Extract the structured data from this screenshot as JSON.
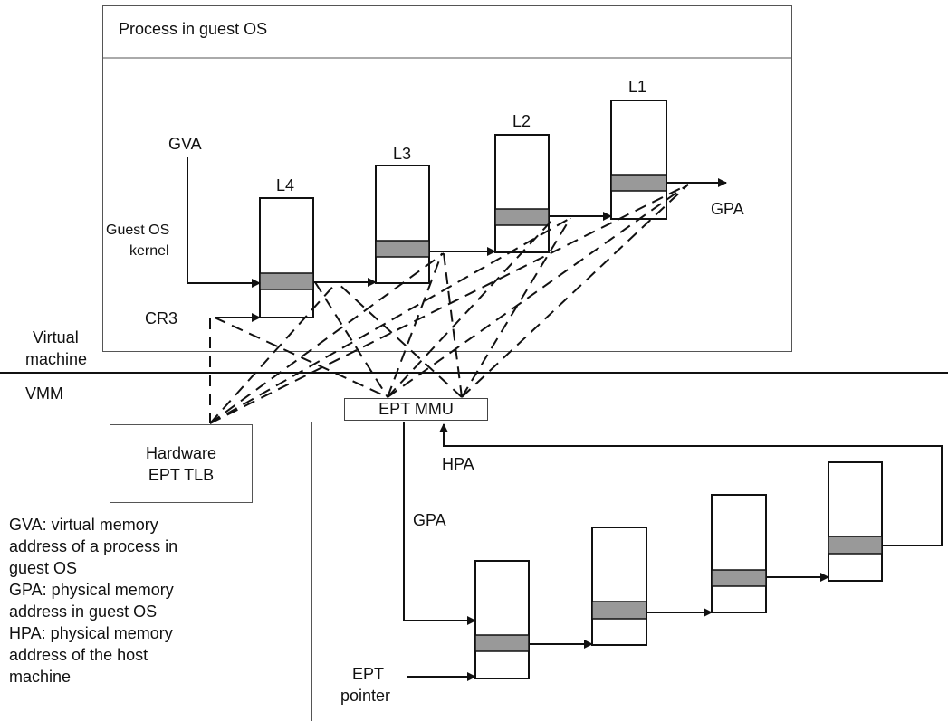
{
  "guest_panel": {
    "title": "Process in guest OS"
  },
  "labels": {
    "gva": "GVA",
    "guest_kernel_line1": "Guest OS",
    "guest_kernel_line2": "kernel",
    "cr3": "CR3",
    "l4": "L4",
    "l3": "L3",
    "l2": "L2",
    "l1": "L1",
    "gpa_out": "GPA",
    "virtual_machine_line1": "Virtual",
    "virtual_machine_line2": "machine",
    "vmm": "VMM",
    "ept_mmu": "EPT MMU",
    "hardware_tlb_line1": "Hardware",
    "hardware_tlb_line2": "EPT TLB",
    "hpa": "HPA",
    "gpa_in": "GPA",
    "ept_pointer_line1": "EPT",
    "ept_pointer_line2": "pointer"
  },
  "legend": [
    "GVA: virtual memory",
    "address of a process in",
    "guest OS",
    "GPA: physical memory",
    "address in guest OS",
    "HPA: physical memory",
    "address of the host",
    "machine"
  ],
  "colors": {
    "line": "#111111",
    "entry_fill": "#999999",
    "box_border": "#555555"
  }
}
